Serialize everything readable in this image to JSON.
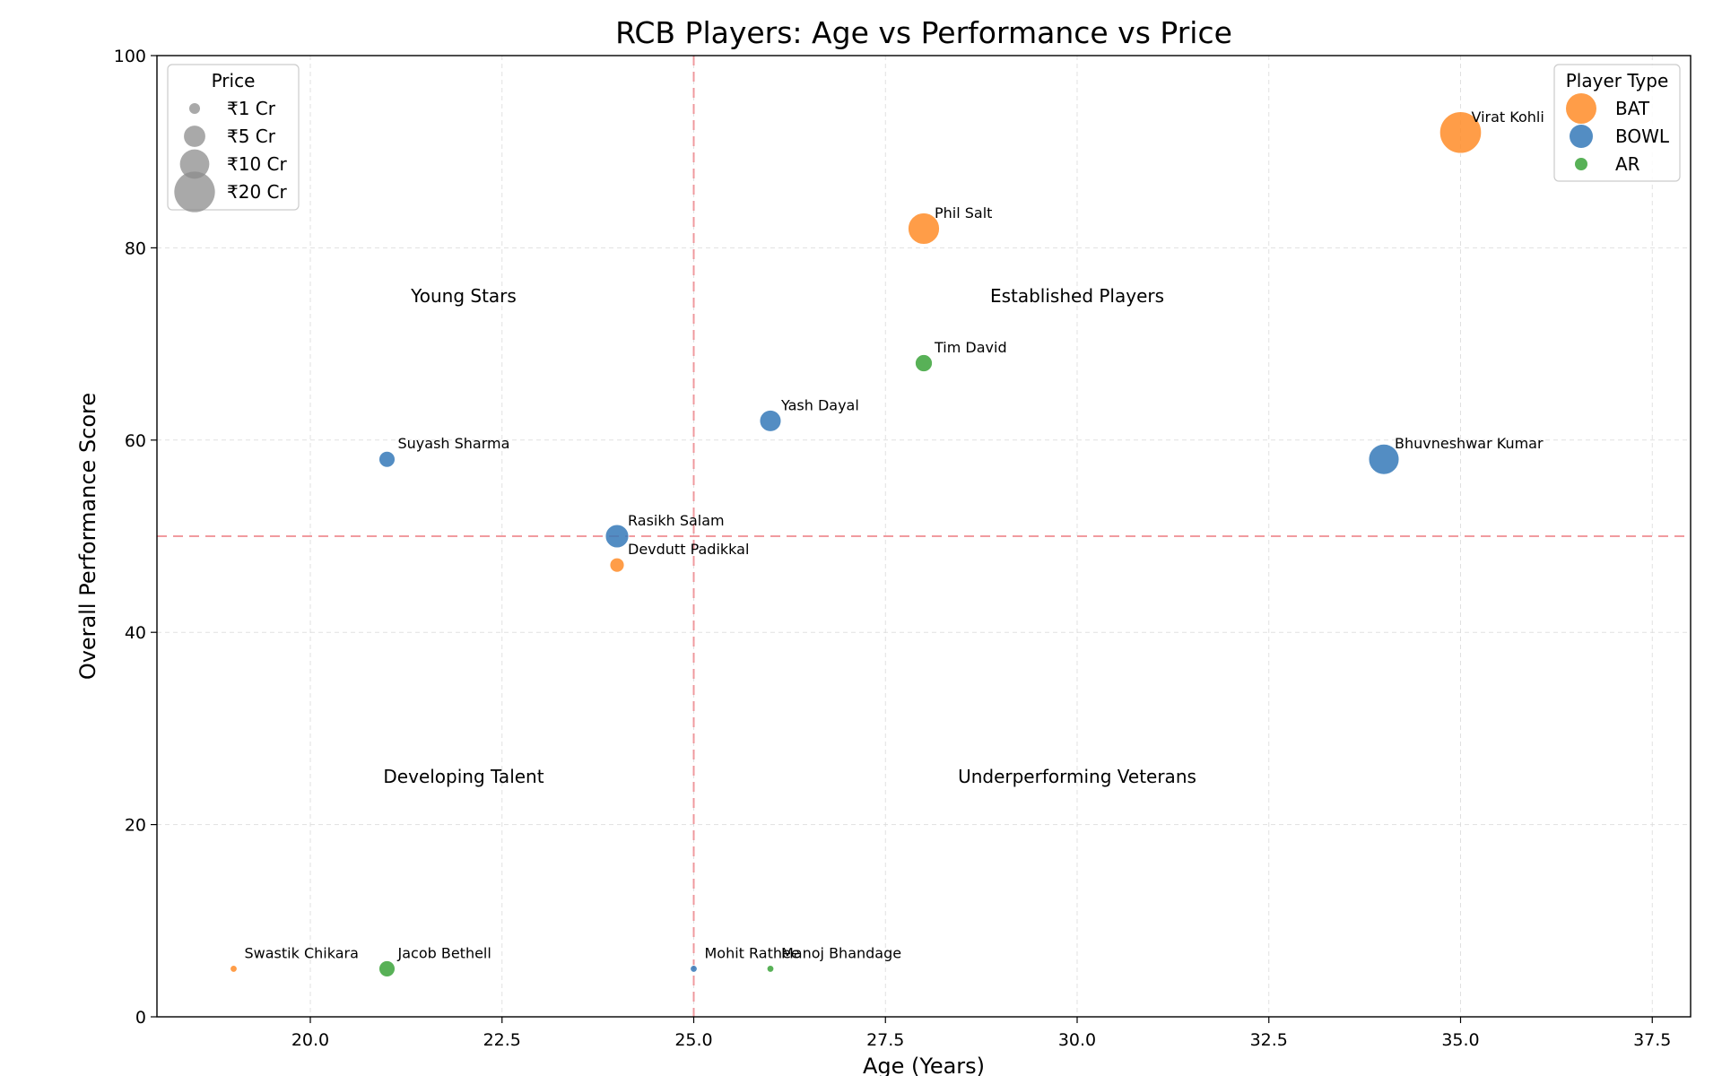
{
  "chart_data": {
    "type": "scatter",
    "title": "RCB Players: Age vs Performance vs Price",
    "xlabel": "Age (Years)",
    "ylabel": "Overall Performance Score",
    "xlim": [
      18,
      38
    ],
    "ylim": [
      0,
      100
    ],
    "xticks": [
      20.0,
      22.5,
      25.0,
      27.5,
      30.0,
      32.5,
      35.0,
      37.5
    ],
    "xtick_labels": [
      "20.0",
      "22.5",
      "25.0",
      "27.5",
      "30.0",
      "32.5",
      "35.0",
      "37.5"
    ],
    "yticks": [
      0,
      20,
      40,
      60,
      80,
      100
    ],
    "ytick_labels": [
      "0",
      "20",
      "40",
      "60",
      "80",
      "100"
    ],
    "grid": true,
    "reference_lines": {
      "x": 25,
      "y": 50,
      "color": "#ef8a8f",
      "style": "dashed"
    },
    "quadrant_labels": [
      {
        "text": "Young Stars",
        "x": 22,
        "y": 75
      },
      {
        "text": "Established Players",
        "x": 30,
        "y": 75
      },
      {
        "text": "Developing Talent",
        "x": 22,
        "y": 25
      },
      {
        "text": "Underperforming Veterans",
        "x": 30,
        "y": 25
      }
    ],
    "type_colors": {
      "BAT": "#ff8c28",
      "BOWL": "#3579b8",
      "AR": "#3ba33a"
    },
    "points": [
      {
        "name": "Virat Kohli",
        "type": "BAT",
        "age": 35,
        "score": 92,
        "price_cr": 21
      },
      {
        "name": "Phil Salt",
        "type": "BAT",
        "age": 28,
        "score": 82,
        "price_cr": 11.5
      },
      {
        "name": "Tim David",
        "type": "AR",
        "age": 28,
        "score": 68,
        "price_cr": 3
      },
      {
        "name": "Yash Dayal",
        "type": "BOWL",
        "age": 26,
        "score": 62,
        "price_cr": 5
      },
      {
        "name": "Suyash Sharma",
        "type": "BOWL",
        "age": 21,
        "score": 58,
        "price_cr": 2.6
      },
      {
        "name": "Bhuvneshwar Kumar",
        "type": "BOWL",
        "age": 34,
        "score": 58,
        "price_cr": 10.75
      },
      {
        "name": "Rasikh Salam",
        "type": "BOWL",
        "age": 24,
        "score": 50,
        "price_cr": 6
      },
      {
        "name": "Devdutt Padikkal",
        "type": "BAT",
        "age": 24,
        "score": 47,
        "price_cr": 2
      },
      {
        "name": "Swastik Chikara",
        "type": "BAT",
        "age": 19,
        "score": 5,
        "price_cr": 0.3
      },
      {
        "name": "Jacob Bethell",
        "type": "AR",
        "age": 21,
        "score": 5,
        "price_cr": 2.6
      },
      {
        "name": "Mohit Rathee",
        "type": "BOWL",
        "age": 25,
        "score": 5,
        "price_cr": 0.3
      },
      {
        "name": "Manoj Bhandage",
        "type": "AR",
        "age": 26,
        "score": 5,
        "price_cr": 0.3
      }
    ],
    "legends": {
      "price": {
        "title": "Price",
        "placement": "top-left",
        "entries": [
          {
            "label": "₹1 Cr",
            "price_cr": 1
          },
          {
            "label": "₹5 Cr",
            "price_cr": 5
          },
          {
            "label": "₹10 Cr",
            "price_cr": 10
          },
          {
            "label": "₹20 Cr",
            "price_cr": 20
          }
        ]
      },
      "type": {
        "title": "Player Type",
        "placement": "top-right",
        "entries": [
          {
            "label": "BAT",
            "type": "BAT"
          },
          {
            "label": "BOWL",
            "type": "BOWL"
          },
          {
            "label": "AR",
            "type": "AR"
          }
        ]
      }
    }
  }
}
